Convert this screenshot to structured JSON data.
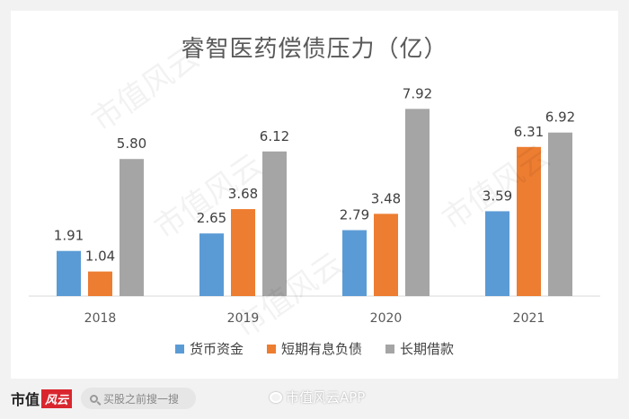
{
  "chart_data": {
    "type": "bar",
    "title": "睿智医药偿债压力（亿）",
    "categories": [
      "2018",
      "2019",
      "2020",
      "2021"
    ],
    "series": [
      {
        "name": "货币资金",
        "color": "#5b9bd5",
        "values": [
          1.91,
          2.65,
          2.79,
          3.59
        ]
      },
      {
        "name": "短期有息负债",
        "color": "#ed7d31",
        "values": [
          1.04,
          3.68,
          3.48,
          6.31
        ]
      },
      {
        "name": "长期借款",
        "color": "#a5a5a5",
        "values": [
          5.8,
          6.12,
          7.92,
          6.92
        ]
      }
    ],
    "ylim": [
      0,
      8.2
    ],
    "grid": false,
    "legend_position": "bottom",
    "xlabel": "",
    "ylabel": ""
  },
  "watermark_text": "市值风云",
  "footer": {
    "logo_text": "市值",
    "logo_mark": "风云",
    "search_placeholder": "买股之前搜一搜",
    "weibo_text": "市值风云APP"
  }
}
